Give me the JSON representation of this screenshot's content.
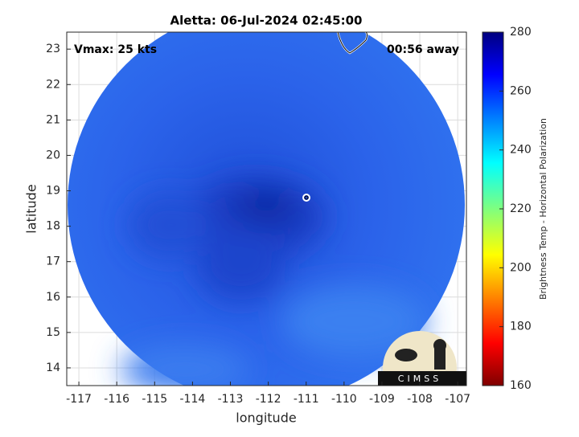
{
  "chart_data": {
    "type": "image",
    "title": "Aletta: 06-Jul-2024 02:45:00",
    "annotations": [
      "Vmax: 25 kts",
      "00:56 away"
    ],
    "xlabel": "longitude",
    "ylabel": "latitude",
    "xlim": [
      -117.32,
      -106.77
    ],
    "ylim": [
      13.5,
      23.48
    ],
    "xticks": [
      -117,
      -116,
      -115,
      -114,
      -113,
      -112,
      -111,
      -110,
      -109,
      -108,
      -107
    ],
    "yticks": [
      14,
      15,
      16,
      17,
      18,
      19,
      20,
      21,
      22,
      23
    ],
    "grid": true,
    "colorbar": {
      "label": "Brightness Temp - Horizontal Polarization",
      "lim": [
        160,
        280
      ],
      "ticks": [
        160,
        180,
        200,
        220,
        240,
        260,
        280
      ]
    },
    "logo": "CIMSS"
  }
}
